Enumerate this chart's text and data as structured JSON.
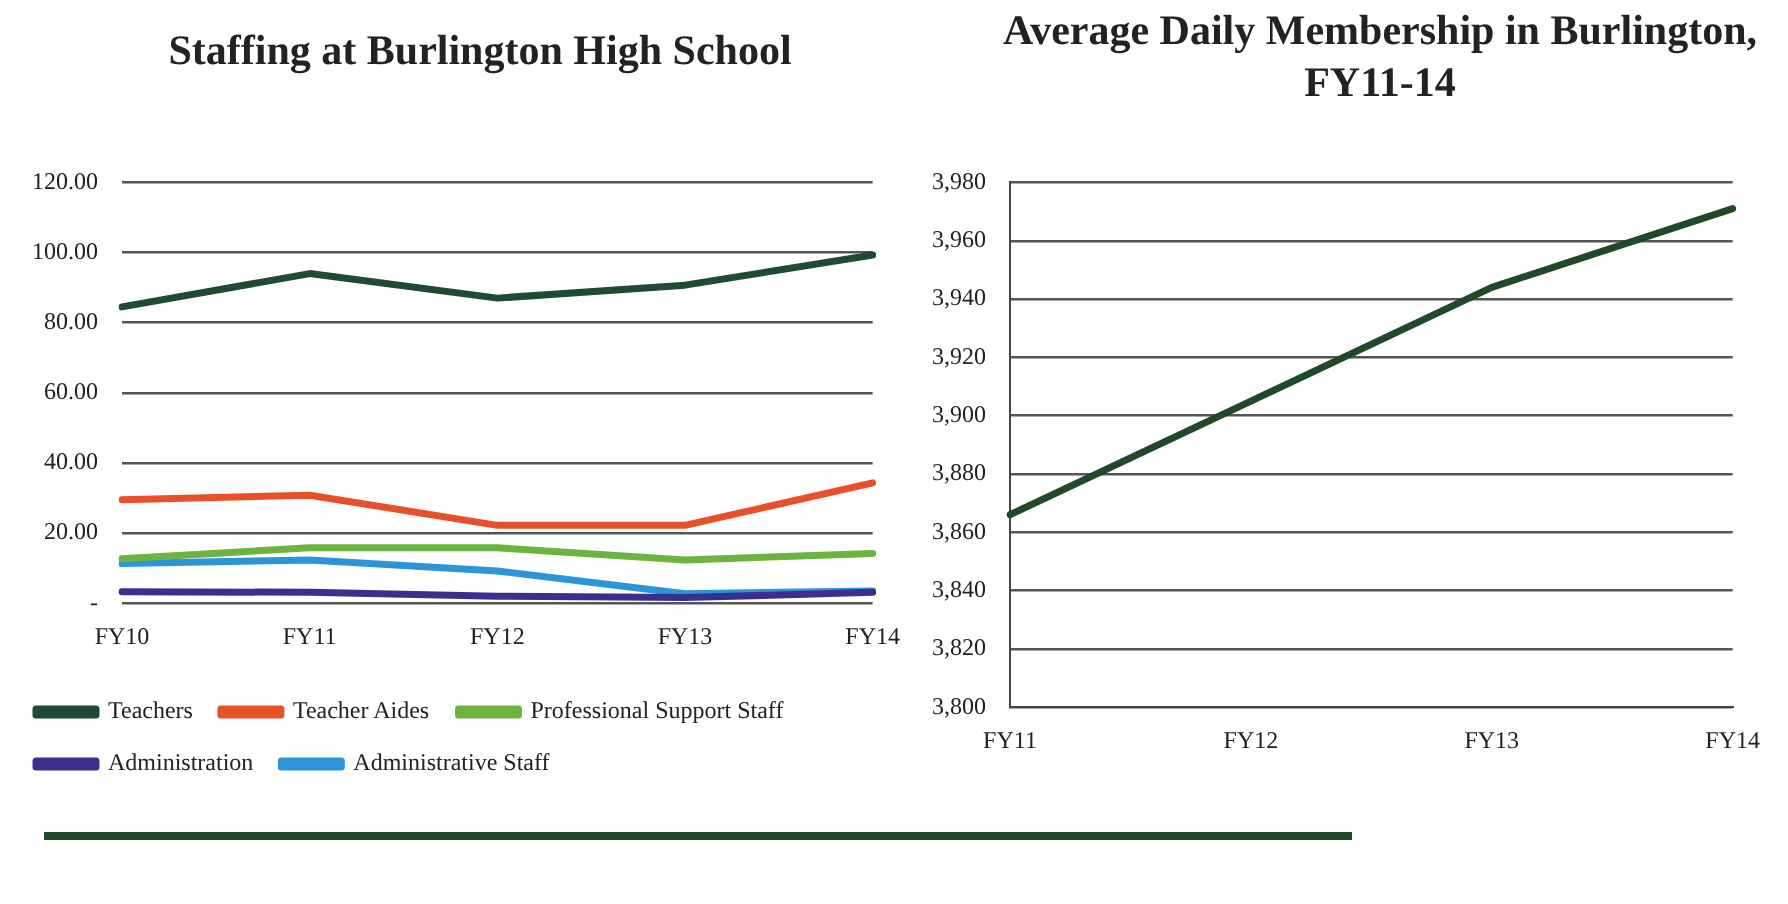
{
  "chart_data": [
    {
      "type": "line",
      "title": "Staffing at Burlington High School",
      "categories": [
        "FY10",
        "FY11",
        "FY12",
        "FY13",
        "FY14"
      ],
      "series": [
        {
          "name": "Teachers",
          "color": "#1f4a33",
          "values": [
            84.5,
            94,
            87,
            90.7,
            99.3
          ]
        },
        {
          "name": "Teacher Aides",
          "color": "#e8502a",
          "values": [
            29.5,
            30.8,
            22.2,
            22.2,
            34.3
          ]
        },
        {
          "name": "Professional Support Staff",
          "color": "#6db33f",
          "values": [
            12.7,
            15.8,
            15.8,
            12.3,
            14.2
          ]
        },
        {
          "name": "Administration",
          "color": "#3a2f8f",
          "values": [
            3.3,
            3.1,
            2,
            1.6,
            3.1
          ]
        },
        {
          "name": "Administrative Staff",
          "color": "#2b95d8",
          "values": [
            11.3,
            12.3,
            9.2,
            2.7,
            3.5
          ]
        }
      ],
      "ylim": [
        0,
        120
      ],
      "yticks": [
        {
          "value": 0,
          "label": "-"
        },
        {
          "value": 20,
          "label": "20.00"
        },
        {
          "value": 40,
          "label": "40.00"
        },
        {
          "value": 60,
          "label": "60.00"
        },
        {
          "value": 80,
          "label": "80.00"
        },
        {
          "value": 100,
          "label": "100.00"
        },
        {
          "value": 120,
          "label": "120.00"
        }
      ],
      "grid": "y",
      "legend": "bottom",
      "marker": "none",
      "line_style": "solid"
    },
    {
      "type": "line",
      "title": "Average Daily Membership in Burlington, FY11-14",
      "categories": [
        "FY11",
        "FY12",
        "FY13",
        "FY14"
      ],
      "series": [
        {
          "color": "#1f4a2a",
          "values": [
            3866,
            3905,
            3944,
            3971
          ]
        }
      ],
      "ylim": [
        3800,
        3980
      ],
      "yticks": [
        {
          "value": 3800,
          "label": "3,800"
        },
        {
          "value": 3820,
          "label": "3,820"
        },
        {
          "value": 3840,
          "label": "3,840"
        },
        {
          "value": 3860,
          "label": "3,860"
        },
        {
          "value": 3880,
          "label": "3,880"
        },
        {
          "value": 3900,
          "label": "3,900"
        },
        {
          "value": 3920,
          "label": "3,920"
        },
        {
          "value": 3940,
          "label": "3,940"
        },
        {
          "value": 3960,
          "label": "3,960"
        },
        {
          "value": 3980,
          "label": "3,980"
        }
      ],
      "grid": "y",
      "legend": false,
      "marker": "none",
      "line_style": "solid"
    }
  ]
}
